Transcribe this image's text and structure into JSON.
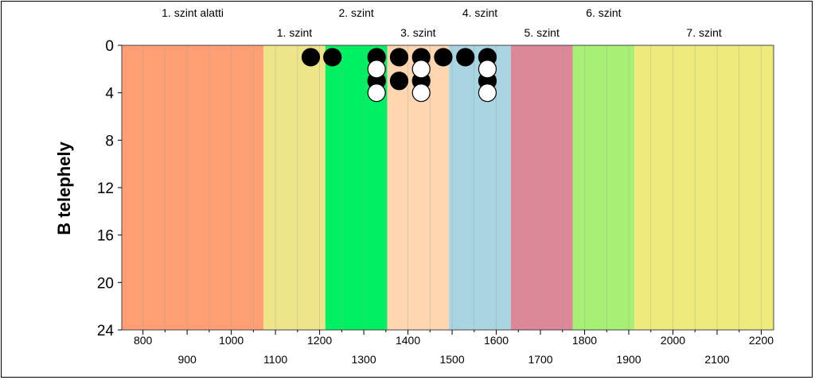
{
  "chart_data": {
    "type": "scatter",
    "ylabel": "B telephely",
    "xlim": [
      752,
      2228
    ],
    "ylim": [
      24,
      0
    ],
    "y_ticks": [
      0,
      4,
      8,
      12,
      16,
      20,
      24
    ],
    "x_ticks_top_row": [
      800,
      1000,
      1200,
      1400,
      1600,
      1800,
      2000,
      2200
    ],
    "x_ticks_bottom_row": [
      900,
      1100,
      1300,
      1500,
      1700,
      1900,
      2100
    ],
    "levels": [
      {
        "name": "1. szint alatti",
        "start": 752,
        "end": 1073,
        "color": "#FF9F73",
        "label_row": "upper"
      },
      {
        "name": "1. szint",
        "start": 1073,
        "end": 1213,
        "color": "#EEE48A",
        "label_row": "lower"
      },
      {
        "name": "2. szint",
        "start": 1213,
        "end": 1353,
        "color": "#00F063",
        "label_row": "upper"
      },
      {
        "name": "3. szint",
        "start": 1353,
        "end": 1493,
        "color": "#FFD6B0",
        "label_row": "lower"
      },
      {
        "name": "4. szint",
        "start": 1493,
        "end": 1633,
        "color": "#A9D4E1",
        "label_row": "upper"
      },
      {
        "name": "5. szint",
        "start": 1633,
        "end": 1773,
        "color": "#DD8898",
        "label_row": "lower"
      },
      {
        "name": "6. szint",
        "start": 1773,
        "end": 1913,
        "color": "#A8EF76",
        "label_row": "upper"
      },
      {
        "name": "7. szint",
        "start": 1913,
        "end": 2228,
        "color": "#EEEB7C",
        "label_row": "lower"
      }
    ],
    "series": [
      {
        "marker": "black",
        "points": [
          {
            "x": 1180,
            "y": 1
          },
          {
            "x": 1229,
            "y": 1
          },
          {
            "x": 1329,
            "y": 1
          },
          {
            "x": 1380,
            "y": 1
          },
          {
            "x": 1430,
            "y": 1
          },
          {
            "x": 1480,
            "y": 1
          },
          {
            "x": 1530,
            "y": 1
          },
          {
            "x": 1580,
            "y": 1
          },
          {
            "x": 1329,
            "y": 3
          },
          {
            "x": 1380,
            "y": 3
          },
          {
            "x": 1430,
            "y": 3
          },
          {
            "x": 1580,
            "y": 3
          }
        ]
      },
      {
        "marker": "white",
        "points": [
          {
            "x": 1329,
            "y": 2
          },
          {
            "x": 1430,
            "y": 2
          },
          {
            "x": 1580,
            "y": 2
          },
          {
            "x": 1329,
            "y": 4
          },
          {
            "x": 1430,
            "y": 4
          },
          {
            "x": 1580,
            "y": 4
          }
        ]
      }
    ]
  }
}
